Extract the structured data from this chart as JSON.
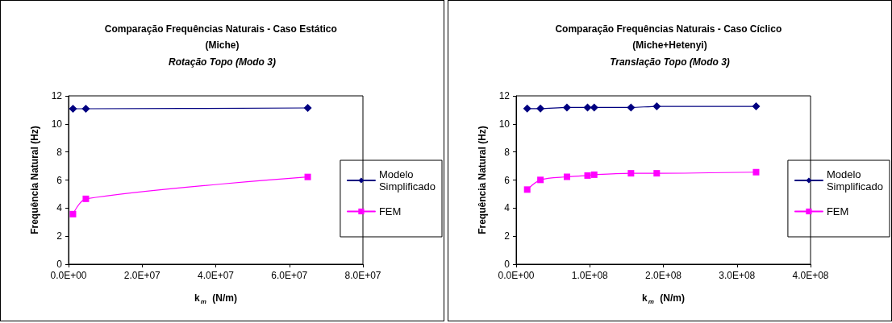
{
  "chart_data": [
    {
      "type": "line",
      "title": "Comparação Frequências Naturais - Caso Estático (Miche)",
      "subtitle": "Rotação Topo (Modo 3)",
      "xlabel": "k$_{m}$ (N/m)",
      "ylabel": "Frequência Natural (Hz)",
      "xlim": [
        0,
        80000000
      ],
      "xticks": [
        {
          "value": 0,
          "label": "0.0E+00"
        },
        {
          "value": 20000000,
          "label": "2.0E+07"
        },
        {
          "value": 40000000,
          "label": "4.0E+07"
        },
        {
          "value": 60000000,
          "label": "6.0E+07"
        },
        {
          "value": 80000000,
          "label": "8.0E+07"
        }
      ],
      "ylim": [
        0,
        12
      ],
      "yticks": [
        0,
        2,
        4,
        6,
        8,
        10,
        12
      ],
      "grid": false,
      "legend": "right",
      "series": [
        {
          "name": "Modelo Simplificado",
          "color": "#000080",
          "marker": "diamond",
          "x": [
            1200000,
            4700000,
            65000000
          ],
          "values": [
            11.08,
            11.08,
            11.14
          ]
        },
        {
          "name": "FEM",
          "color": "#ff00ff",
          "marker": "square",
          "x": [
            1200000,
            4700000,
            65000000
          ],
          "values": [
            3.57,
            4.66,
            6.22
          ]
        }
      ]
    },
    {
      "type": "line",
      "title": "Comparação Frequências Naturais - Caso Cíclico (Miche+Hetenyi)",
      "subtitle": "Translação Topo (Modo 3)",
      "xlabel": "k$_{m}$ (N/m)",
      "ylabel": "Frequência Natural (Hz)",
      "xlim": [
        0,
        400000000
      ],
      "xticks": [
        {
          "value": 0,
          "label": "0.0E+00"
        },
        {
          "value": 100000000,
          "label": "1.0E+08"
        },
        {
          "value": 200000000,
          "label": "2.0E+08"
        },
        {
          "value": 300000000,
          "label": "3.0E+08"
        },
        {
          "value": 400000000,
          "label": "4.0E+08"
        }
      ],
      "ylim": [
        0,
        12
      ],
      "yticks": [
        0,
        2,
        4,
        6,
        8,
        10,
        12
      ],
      "grid": false,
      "legend": "right",
      "series": [
        {
          "name": "Modelo Simplificado",
          "color": "#000080",
          "marker": "diamond",
          "x": [
            15000000,
            33000000,
            69000000,
            97000000,
            106000000,
            156000000,
            191000000,
            326000000
          ],
          "values": [
            11.09,
            11.09,
            11.17,
            11.17,
            11.17,
            11.17,
            11.25,
            11.25
          ]
        },
        {
          "name": "FEM",
          "color": "#ff00ff",
          "marker": "square",
          "x": [
            15000000,
            33000000,
            69000000,
            97000000,
            106000000,
            156000000,
            191000000,
            326000000
          ],
          "values": [
            5.32,
            6.01,
            6.23,
            6.32,
            6.38,
            6.48,
            6.48,
            6.56
          ]
        }
      ]
    }
  ]
}
